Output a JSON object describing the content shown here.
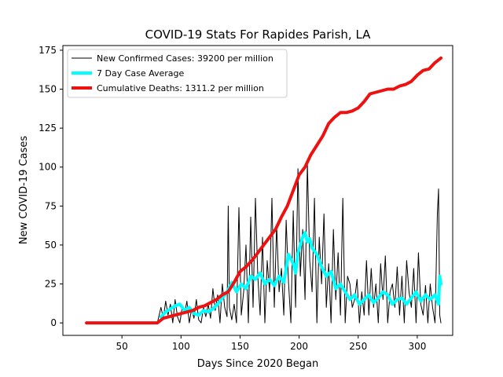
{
  "chart_data": {
    "type": "line",
    "title": "COVID-19 Stats For Rapides Parish, LA",
    "xlabel": "Days Since 2020 Began",
    "ylabel": "New COVID-19 Cases",
    "xlim": [
      0,
      330
    ],
    "ylim": [
      -8,
      178
    ],
    "xticks": [
      50,
      100,
      150,
      200,
      250,
      300
    ],
    "yticks": [
      0,
      25,
      50,
      75,
      100,
      125,
      150,
      175
    ],
    "grid": false,
    "legend_position": "top-left",
    "series": [
      {
        "name": "New Confirmed Cases: 39200 per million",
        "color": "#000000",
        "linewidth": 1,
        "x": [
          20,
          40,
          60,
          80,
          83,
          85,
          87,
          89,
          91,
          93,
          95,
          97,
          99,
          101,
          103,
          105,
          107,
          109,
          111,
          113,
          115,
          117,
          119,
          121,
          123,
          125,
          127,
          129,
          131,
          133,
          135,
          137,
          139,
          140,
          141,
          143,
          145,
          147,
          149,
          151,
          153,
          155,
          157,
          159,
          161,
          163,
          165,
          167,
          169,
          171,
          173,
          175,
          177,
          179,
          181,
          183,
          185,
          187,
          189,
          191,
          193,
          195,
          197,
          199,
          201,
          203,
          205,
          207,
          209,
          211,
          213,
          215,
          217,
          219,
          221,
          223,
          225,
          227,
          229,
          231,
          233,
          235,
          237,
          239,
          241,
          243,
          245,
          247,
          249,
          251,
          253,
          255,
          257,
          259,
          261,
          263,
          265,
          267,
          269,
          271,
          273,
          275,
          277,
          279,
          281,
          283,
          285,
          287,
          289,
          291,
          293,
          295,
          297,
          299,
          301,
          303,
          305,
          307,
          309,
          311,
          313,
          315,
          317,
          318,
          319,
          320
        ],
        "values": [
          0,
          0,
          0,
          0,
          10,
          3,
          14,
          5,
          12,
          0,
          15,
          4,
          0,
          10,
          6,
          14,
          0,
          9,
          3,
          15,
          2,
          0,
          10,
          4,
          12,
          3,
          22,
          8,
          18,
          0,
          25,
          10,
          4,
          75,
          10,
          2,
          12,
          0,
          74,
          5,
          20,
          50,
          0,
          68,
          10,
          80,
          30,
          5,
          55,
          0,
          40,
          20,
          80,
          10,
          63,
          20,
          35,
          5,
          66,
          26,
          0,
          72,
          10,
          99,
          30,
          60,
          15,
          102,
          40,
          20,
          80,
          0,
          55,
          25,
          70,
          10,
          38,
          0,
          60,
          15,
          45,
          5,
          80,
          0,
          30,
          25,
          10,
          15,
          28,
          0,
          20,
          5,
          40,
          5,
          35,
          10,
          25,
          0,
          38,
          15,
          43,
          0,
          20,
          25,
          10,
          36,
          5,
          30,
          0,
          40,
          20,
          10,
          35,
          0,
          45,
          12,
          5,
          24,
          0,
          25,
          10,
          0,
          70,
          86,
          5,
          0
        ]
      },
      {
        "name": "7 Day Case Average",
        "color": "#00ffff",
        "linewidth": 4,
        "x": [
          83,
          87,
          91,
          95,
          99,
          103,
          107,
          111,
          115,
          119,
          123,
          127,
          131,
          135,
          139,
          143,
          147,
          151,
          155,
          159,
          163,
          167,
          171,
          175,
          179,
          183,
          187,
          191,
          195,
          197,
          199,
          203,
          205,
          207,
          209,
          211,
          215,
          219,
          223,
          227,
          231,
          235,
          239,
          243,
          247,
          251,
          255,
          259,
          263,
          267,
          271,
          275,
          279,
          283,
          287,
          291,
          295,
          299,
          303,
          307,
          311,
          315,
          318,
          319,
          320
        ],
        "values": [
          4,
          7,
          9,
          11,
          12,
          8,
          10,
          6,
          5,
          8,
          7,
          9,
          12,
          16,
          20,
          26,
          20,
          25,
          22,
          30,
          28,
          32,
          25,
          28,
          24,
          30,
          26,
          44,
          38,
          32,
          45,
          55,
          58,
          52,
          54,
          48,
          44,
          36,
          30,
          33,
          22,
          25,
          20,
          15,
          18,
          12,
          15,
          18,
          13,
          16,
          20,
          18,
          12,
          15,
          16,
          12,
          16,
          20,
          14,
          18,
          15,
          18,
          12,
          30,
          25
        ]
      },
      {
        "name": "Cumulative Deaths: 1311.2 per million",
        "color": "#ee1111",
        "linewidth": 4,
        "x": [
          20,
          40,
          60,
          80,
          85,
          90,
          95,
          100,
          105,
          110,
          115,
          120,
          125,
          130,
          135,
          140,
          145,
          150,
          155,
          160,
          165,
          170,
          175,
          180,
          185,
          190,
          195,
          200,
          205,
          210,
          215,
          220,
          225,
          230,
          235,
          240,
          245,
          250,
          255,
          260,
          265,
          270,
          275,
          280,
          285,
          290,
          295,
          300,
          305,
          310,
          315,
          320
        ],
        "values": [
          0,
          0,
          0,
          0,
          3,
          4,
          5,
          6,
          7,
          8,
          10,
          11,
          13,
          15,
          18,
          20,
          26,
          33,
          36,
          40,
          45,
          50,
          55,
          60,
          68,
          75,
          85,
          95,
          100,
          108,
          114,
          120,
          128,
          132,
          135,
          135,
          136,
          138,
          142,
          147,
          148,
          149,
          150,
          150,
          152,
          153,
          155,
          159,
          162,
          163,
          167,
          170
        ]
      }
    ]
  }
}
